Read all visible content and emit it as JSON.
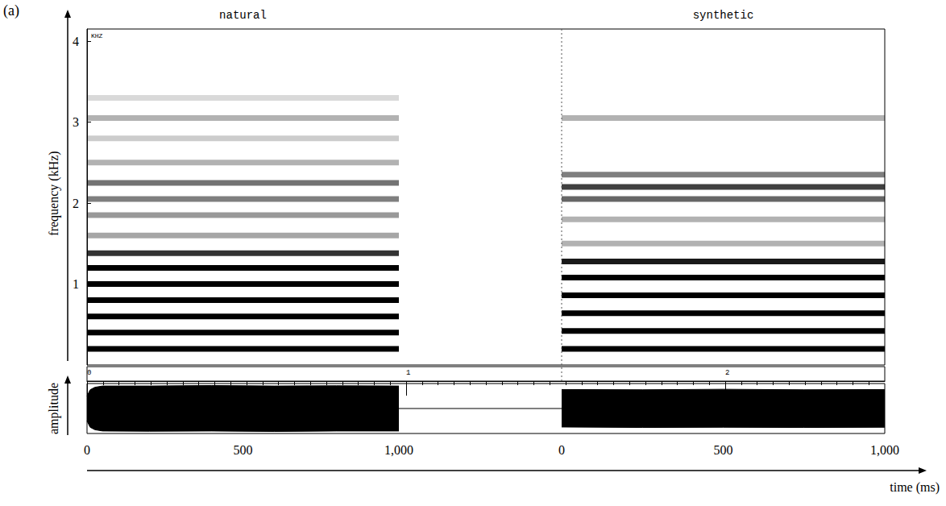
{
  "chart_data": {
    "type": "spectrogram",
    "label": "(a)",
    "corner_label": "KHZ",
    "x_label": "time (ms)",
    "y_label": "frequency (kHz)",
    "ylim": [
      0,
      4.15
    ],
    "yticks": [
      1,
      2,
      3,
      4
    ],
    "xlim": [
      0,
      1000
    ],
    "xticks": [
      0,
      500,
      1000
    ],
    "ruler": {
      "xlim": [
        0,
        2.5
      ],
      "xticks": [
        0,
        1,
        2
      ]
    },
    "amplitude": {
      "label": "amplitude",
      "ylim": [
        -1,
        1
      ],
      "tick_labels": "x"
    },
    "panels": [
      {
        "title": "natural",
        "bands": [
          {
            "freq": 0.2,
            "level": 1
          },
          {
            "freq": 0.4,
            "level": 1
          },
          {
            "freq": 0.6,
            "level": 1
          },
          {
            "freq": 0.8,
            "level": 1
          },
          {
            "freq": 1.0,
            "level": 1
          },
          {
            "freq": 1.2,
            "level": 1
          },
          {
            "freq": 1.38,
            "level": 0.8
          },
          {
            "freq": 1.6,
            "level": 0.35
          },
          {
            "freq": 1.85,
            "level": 0.4
          },
          {
            "freq": 2.05,
            "level": 0.5
          },
          {
            "freq": 2.25,
            "level": 0.55
          },
          {
            "freq": 2.5,
            "level": 0.3
          },
          {
            "freq": 2.8,
            "level": 0.2
          },
          {
            "freq": 3.05,
            "level": 0.3
          },
          {
            "freq": 3.3,
            "level": 0.15
          }
        ],
        "envelope": {
          "x": [
            0,
            10,
            25,
            50,
            200,
            400,
            600,
            800,
            1000
          ],
          "upper": [
            0.5,
            0.75,
            0.85,
            0.9,
            0.9,
            0.92,
            0.9,
            0.91,
            0.9
          ],
          "lower": [
            -0.5,
            -0.75,
            -0.85,
            -0.9,
            -0.91,
            -0.9,
            -0.92,
            -0.9,
            -0.9
          ]
        }
      },
      {
        "title": "synthetic",
        "tick_labels": "x",
        "bands": [
          {
            "freq": 0.2,
            "level": 1
          },
          {
            "freq": 0.42,
            "level": 1
          },
          {
            "freq": 0.64,
            "level": 1
          },
          {
            "freq": 0.86,
            "level": 1
          },
          {
            "freq": 1.08,
            "level": 1
          },
          {
            "freq": 1.28,
            "level": 0.9
          },
          {
            "freq": 1.5,
            "level": 0.3
          },
          {
            "freq": 1.8,
            "level": 0.3
          },
          {
            "freq": 2.05,
            "level": 0.6
          },
          {
            "freq": 2.2,
            "level": 0.75
          },
          {
            "freq": 2.35,
            "level": 0.5
          },
          {
            "freq": 3.05,
            "level": 0.3
          }
        ],
        "envelope": {
          "x": [
            0,
            250,
            500,
            750,
            1000
          ],
          "upper": [
            0.76,
            0.75,
            0.77,
            0.75,
            0.76
          ],
          "lower": [
            -0.74,
            -0.76,
            -0.75,
            -0.76,
            -0.75
          ]
        }
      }
    ]
  }
}
